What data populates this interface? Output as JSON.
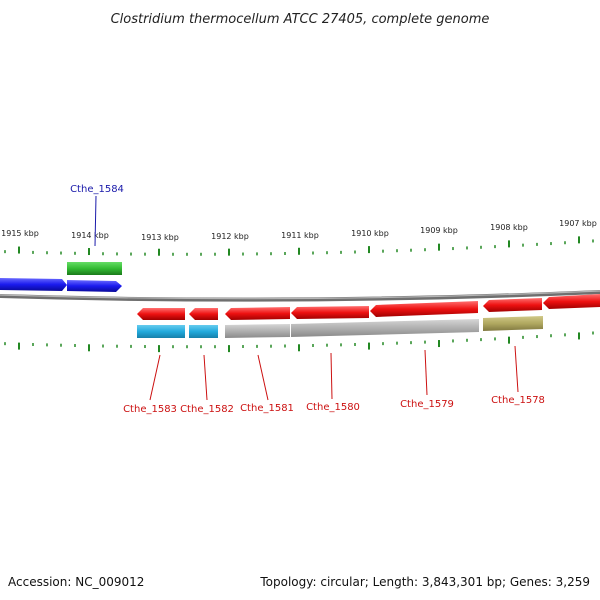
{
  "title": "Clostridium thermocellum ATCC 27405, complete genome",
  "footer": {
    "accession": "Accession: NC_009012",
    "summary": "Topology: circular; Length: 3,843,301 bp; Genes: 3,259"
  },
  "ticks": [
    "1915 kbp",
    "1914 kbp",
    "1913 kbp",
    "1912 kbp",
    "1911 kbp",
    "1910 kbp",
    "1909 kbp",
    "1908 kbp",
    "1907 kbp"
  ],
  "labels": {
    "cthe_1584": "Cthe_1584",
    "cthe_1583": "Cthe_1583",
    "cthe_1582": "Cthe_1582",
    "cthe_1581": "Cthe_1581",
    "cthe_1580": "Cthe_1580",
    "cthe_1579": "Cthe_1579",
    "cthe_1578": "Cthe_1578"
  },
  "colors": {
    "forward_gene": "#1a1aee",
    "reverse_gene": "#ee1111",
    "cds_green": "#33bb33",
    "cds_cyan": "#22aadd",
    "cds_gray": "#b0b0b0",
    "cds_olive": "#b0a860",
    "backbone": "#888888",
    "tick": "#228822",
    "label_blue": "#1a1aaa",
    "label_red": "#cc1111"
  }
}
